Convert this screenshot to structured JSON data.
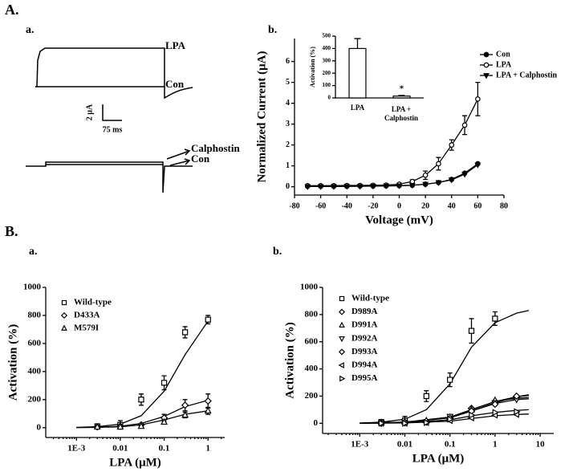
{
  "labels": {
    "panel_a": "A.",
    "panel_a_a": "a.",
    "panel_a_b": "b.",
    "panel_b": "B.",
    "panel_b_a": "a.",
    "panel_b_b": "b."
  },
  "traces": {
    "top_label_1": "LPA",
    "top_label_2": "Con",
    "scale_current": "2 μA",
    "scale_time": "75 ms",
    "bottom_label_1": "Calphostin",
    "bottom_label_2": "Con"
  },
  "chart_data": [
    {
      "type": "line",
      "xlabel": "Voltage (mV)",
      "ylabel": "Normalized Current (μA)",
      "x": [
        -70,
        -60,
        -50,
        -40,
        -30,
        -20,
        -10,
        0,
        10,
        20,
        30,
        40,
        50,
        60
      ],
      "xlim": [
        -80,
        80
      ],
      "xticks": [
        -80,
        -60,
        -40,
        -20,
        0,
        20,
        40,
        60,
        80
      ],
      "ylim": [
        -0.4,
        7.1
      ],
      "yticks": [
        0,
        1,
        2,
        3,
        4,
        5,
        6
      ],
      "series": [
        {
          "name": "Con",
          "marker": "circle-filled",
          "values": [
            0.02,
            0.02,
            0.02,
            0.02,
            0.03,
            0.03,
            0.04,
            0.05,
            0.07,
            0.12,
            0.2,
            0.35,
            0.65,
            1.1
          ]
        },
        {
          "name": "LPA",
          "marker": "circle-open",
          "values": [
            0.05,
            0.05,
            0.05,
            0.06,
            0.06,
            0.07,
            0.08,
            0.12,
            0.25,
            0.55,
            1.1,
            2.0,
            2.95,
            4.2
          ],
          "errors": [
            0.02,
            0.02,
            0.02,
            0.02,
            0.02,
            0.03,
            0.04,
            0.05,
            0.08,
            0.2,
            0.3,
            0.25,
            0.45,
            0.8
          ]
        },
        {
          "name": "LPA + Calphostin",
          "marker": "triangle-down-filled",
          "values": [
            0.01,
            0.01,
            0.01,
            0.02,
            0.02,
            0.03,
            0.04,
            0.05,
            0.07,
            0.12,
            0.2,
            0.33,
            0.6,
            1.05
          ]
        }
      ]
    },
    {
      "type": "bar",
      "ylabel": "Activation (%)",
      "categories": [
        "LPA",
        "LPA + Calphostin"
      ],
      "values": [
        400,
        15
      ],
      "errors": [
        80,
        5
      ],
      "ylim": [
        0,
        500
      ],
      "yticks": [
        0,
        100,
        200,
        300,
        400,
        500
      ],
      "annotation": "*"
    },
    {
      "type": "scatter",
      "log_x": true,
      "xlabel": "LPA (μM)",
      "ylabel": "Activation (%)",
      "xlim": [
        0.0002,
        2.4
      ],
      "xticks": [
        {
          "value": 0.001,
          "label": "1E-3"
        },
        0.01,
        0.1,
        1
      ],
      "ylim": [
        -70,
        1000
      ],
      "yticks": [
        0,
        200,
        400,
        600,
        800,
        1000
      ],
      "series": [
        {
          "name": "Wild-type",
          "marker": "square-open",
          "x": [
            0.003,
            0.01,
            0.03,
            0.1,
            0.3,
            1
          ],
          "values": [
            10,
            20,
            200,
            320,
            680,
            770
          ],
          "errors": [
            5,
            30,
            40,
            50,
            40,
            30
          ],
          "fit_x": [
            0.001,
            0.003,
            0.01,
            0.03,
            0.1,
            0.3,
            1
          ],
          "fit_values": [
            2,
            7,
            25,
            85,
            260,
            520,
            760
          ]
        },
        {
          "name": "D433A",
          "marker": "diamond-open",
          "x": [
            0.003,
            0.01,
            0.03,
            0.1,
            0.3,
            1
          ],
          "values": [
            5,
            10,
            20,
            70,
            160,
            190
          ],
          "errors": [
            5,
            10,
            10,
            25,
            40,
            50
          ],
          "fit_x": [
            0.001,
            0.003,
            0.01,
            0.03,
            0.1,
            0.3,
            1
          ],
          "fit_values": [
            1,
            3,
            10,
            30,
            80,
            150,
            195
          ]
        },
        {
          "name": "M579I",
          "marker": "triangle-up-open",
          "x": [
            0.003,
            0.01,
            0.03,
            0.1,
            0.3,
            1
          ],
          "values": [
            5,
            5,
            10,
            40,
            90,
            120
          ],
          "errors": [
            5,
            5,
            10,
            15,
            20,
            25
          ],
          "fit_x": [
            0.001,
            0.003,
            0.01,
            0.03,
            0.1,
            0.3,
            1
          ],
          "fit_values": [
            1,
            2,
            6,
            20,
            55,
            95,
            120
          ]
        }
      ]
    },
    {
      "type": "scatter",
      "log_x": true,
      "xlabel": "LPA (μM)",
      "ylabel": "Activation (%)",
      "xlim": [
        0.00015,
        20
      ],
      "xticks": [
        {
          "value": 0.001,
          "label": "1E-3"
        },
        0.01,
        0.1,
        1,
        10
      ],
      "ylim": [
        -75,
        1000
      ],
      "yticks": [
        0,
        200,
        400,
        600,
        800,
        1000
      ],
      "series": [
        {
          "name": "Wild-type",
          "marker": "square-open",
          "x": [
            0.003,
            0.01,
            0.03,
            0.1,
            0.3,
            1
          ],
          "values": [
            10,
            20,
            200,
            320,
            680,
            770
          ],
          "errors": [
            5,
            30,
            40,
            50,
            90,
            50
          ],
          "fit_x": [
            0.001,
            0.003,
            0.01,
            0.03,
            0.1,
            0.3,
            1,
            3,
            5.6
          ],
          "fit_values": [
            2,
            8,
            30,
            100,
            290,
            560,
            740,
            810,
            830
          ]
        },
        {
          "name": "D989A",
          "marker": "diamond-open",
          "x": [
            0.003,
            0.01,
            0.03,
            0.1,
            0.3,
            1,
            3
          ],
          "values": [
            5,
            8,
            15,
            40,
            110,
            160,
            195
          ],
          "fit_x": [
            0.001,
            0.01,
            0.1,
            0.3,
            1,
            3,
            5.6
          ],
          "fit_values": [
            1,
            8,
            45,
            100,
            160,
            195,
            205
          ]
        },
        {
          "name": "D991A",
          "marker": "triangle-up-open",
          "x": [
            0.003,
            0.01,
            0.03,
            0.1,
            0.3,
            1,
            3
          ],
          "values": [
            5,
            10,
            20,
            45,
            100,
            170,
            190
          ],
          "fit_x": [
            0.001,
            0.01,
            0.1,
            0.3,
            1,
            3,
            5.6
          ],
          "fit_values": [
            1,
            8,
            45,
            100,
            160,
            185,
            190
          ]
        },
        {
          "name": "D992A",
          "marker": "triangle-down-open",
          "x": [
            0.003,
            0.01,
            0.03,
            0.1,
            0.3,
            1,
            3
          ],
          "values": [
            0,
            5,
            10,
            50,
            90,
            150,
            175
          ],
          "fit_x": [
            0.001,
            0.01,
            0.1,
            0.3,
            1,
            3,
            5.6
          ],
          "fit_values": [
            1,
            7,
            40,
            90,
            145,
            175,
            180
          ]
        },
        {
          "name": "D993A",
          "marker": "diamond-open",
          "x": [
            0.003,
            0.01,
            0.03,
            0.1,
            0.3,
            1,
            3
          ],
          "values": [
            0,
            5,
            15,
            35,
            90,
            140,
            200
          ],
          "fit_x": [
            0.001,
            0.01,
            0.1,
            0.3,
            1,
            3,
            5.6
          ],
          "fit_values": [
            1,
            7,
            40,
            90,
            150,
            195,
            210
          ]
        },
        {
          "name": "D994A",
          "marker": "triangle-left-open",
          "x": [
            0.003,
            0.01,
            0.03,
            0.1,
            0.3,
            1,
            3
          ],
          "values": [
            0,
            0,
            5,
            20,
            40,
            60,
            65
          ],
          "fit_x": [
            0.001,
            0.01,
            0.1,
            0.3,
            1,
            3,
            5.6
          ],
          "fit_values": [
            0,
            3,
            15,
            35,
            55,
            65,
            68
          ]
        },
        {
          "name": "D995A",
          "marker": "triangle-right-open",
          "x": [
            0.003,
            0.01,
            0.03,
            0.1,
            0.3,
            1,
            3
          ],
          "values": [
            0,
            0,
            5,
            30,
            60,
            80,
            85
          ],
          "fit_x": [
            0.001,
            0.01,
            0.1,
            0.3,
            1,
            3,
            5.6
          ],
          "fit_values": [
            0,
            4,
            25,
            55,
            80,
            95,
            100
          ]
        }
      ]
    }
  ]
}
